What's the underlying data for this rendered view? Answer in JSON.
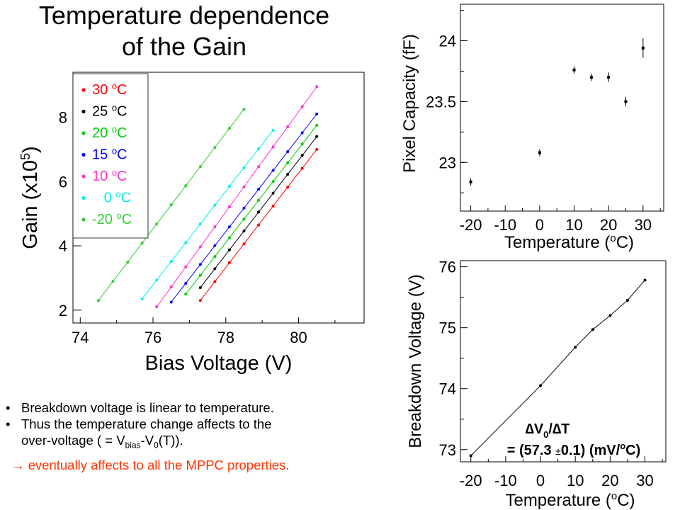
{
  "title": {
    "line1": "Temperature dependence",
    "line2": "of the Gain"
  },
  "notes": {
    "line1": "Breakdown voltage is linear to temperature.",
    "line2": "Thus the temperature change affects to the",
    "line3_pre": "over-voltage ( = V",
    "line3_sub1": "bias",
    "line3_mid": "-V",
    "line3_sub2": "0",
    "line3_post": "(T)).",
    "line4_arrow": "→",
    "line4": "eventually affects to all the MPPC properties."
  },
  "chart_data": [
    {
      "type": "line",
      "ylabel": "Gain (x10",
      "ylabel_sup": "5",
      "ylabel_post": ")",
      "xlabel": "Bias Voltage (V)",
      "xlim": [
        73.8,
        81.8
      ],
      "ylim": [
        1.6,
        9.4
      ],
      "xticks": [
        74,
        76,
        78,
        80
      ],
      "yticks": [
        2,
        4,
        6,
        8
      ],
      "unit": "C",
      "deg": "o",
      "series": [
        {
          "name": "30",
          "color": "#ff0000",
          "x": [
            77.3,
            80.5
          ],
          "y": [
            2.3,
            7.0
          ]
        },
        {
          "name": "25",
          "color": "#000000",
          "x": [
            77.3,
            80.5
          ],
          "y": [
            2.7,
            7.4
          ]
        },
        {
          "name": "20",
          "color": "#00cc00",
          "x": [
            76.9,
            80.5
          ],
          "y": [
            2.5,
            7.75
          ]
        },
        {
          "name": "15",
          "color": "#0000ff",
          "x": [
            76.5,
            80.5
          ],
          "y": [
            2.25,
            8.1
          ]
        },
        {
          "name": "10",
          "color": "#ff33cc",
          "x": [
            76.1,
            80.5
          ],
          "y": [
            2.1,
            8.95
          ]
        },
        {
          "name": "0",
          "color": "#00eeee",
          "x": [
            75.7,
            79.3
          ],
          "y": [
            2.35,
            7.6
          ]
        },
        {
          "name": "-20",
          "color": "#33cc33",
          "x": [
            74.5,
            78.5
          ],
          "y": [
            2.3,
            8.25
          ]
        }
      ]
    },
    {
      "type": "scatter",
      "ylabel": "Pixel Capacity (fF)",
      "xlabel": "Temperature (",
      "xlabel_sup": "o",
      "xlabel_post": "C)",
      "xlim": [
        -23,
        36
      ],
      "ylim": [
        22.6,
        24.3
      ],
      "xticks": [
        -20,
        -10,
        0,
        10,
        20,
        30
      ],
      "yticks": [
        23,
        23.5,
        24
      ],
      "points": [
        {
          "x": -20,
          "y": 22.84,
          "err": 0.03
        },
        {
          "x": 0,
          "y": 23.08,
          "err": 0.03
        },
        {
          "x": 10,
          "y": 23.76,
          "err": 0.03
        },
        {
          "x": 15,
          "y": 23.7,
          "err": 0.03
        },
        {
          "x": 20,
          "y": 23.7,
          "err": 0.04
        },
        {
          "x": 25,
          "y": 23.5,
          "err": 0.04
        },
        {
          "x": 30,
          "y": 23.94,
          "err": 0.08
        }
      ]
    },
    {
      "type": "line",
      "ylabel": "Breakdown Voltage (V)",
      "xlabel": "Temperature (",
      "xlabel_sup": "o",
      "xlabel_post": "C)",
      "xlim": [
        -23,
        36
      ],
      "ylim": [
        72.8,
        76.1
      ],
      "xticks": [
        -20,
        -10,
        0,
        10,
        20,
        30
      ],
      "yticks": [
        73,
        74,
        75,
        76
      ],
      "annotation": {
        "line1_a": "∆V",
        "line1_sub": "0",
        "line1_b": "/∆T",
        "line2_a": "= (57.3 ",
        "line2_pm": "±",
        "line2_b": "0.1) (mV/",
        "line2_sup": "o",
        "line2_c": "C)"
      },
      "points": [
        {
          "x": -20,
          "y": 72.9
        },
        {
          "x": 0,
          "y": 74.05
        },
        {
          "x": 10,
          "y": 74.68
        },
        {
          "x": 15,
          "y": 74.97
        },
        {
          "x": 20,
          "y": 75.2
        },
        {
          "x": 25,
          "y": 75.45
        },
        {
          "x": 30,
          "y": 75.78
        }
      ]
    }
  ]
}
